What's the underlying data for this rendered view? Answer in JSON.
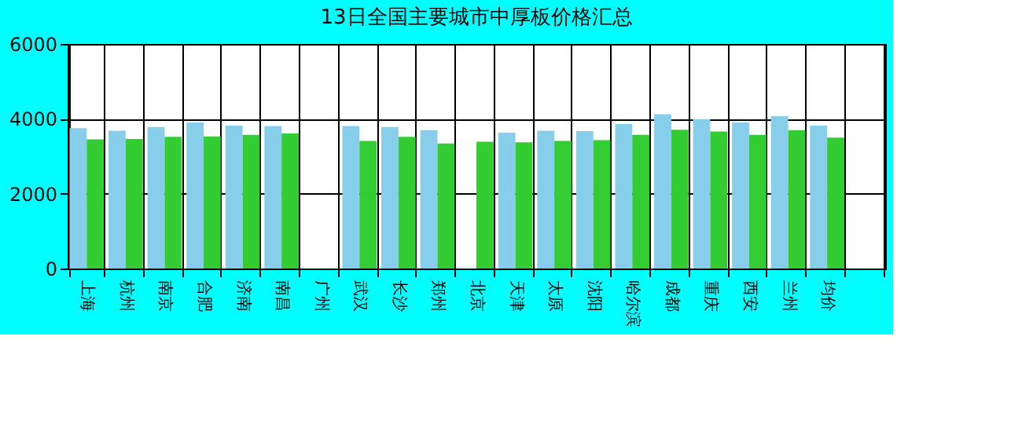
{
  "chart_data": {
    "type": "bar",
    "title": "13日全国主要城市中厚板价格汇总",
    "categories": [
      "上海",
      "杭州",
      "南京",
      "合肥",
      "济南",
      "南昌",
      "广州",
      "武汉",
      "长沙",
      "郑州",
      "北京",
      "天津",
      "太原",
      "沈阳",
      "哈尔滨",
      "成都",
      "重庆",
      "西安",
      "兰州",
      "均价",
      null
    ],
    "series": [
      {
        "color": "#87ceeb",
        "values": [
          3750,
          3680,
          3780,
          3900,
          3820,
          3810,
          null,
          3810,
          3780,
          3700,
          null,
          3630,
          3680,
          3670,
          3860,
          4120,
          3990,
          3900,
          4070,
          3820,
          null
        ]
      },
      {
        "color": "#33cc33",
        "values": [
          3450,
          3460,
          3520,
          3530,
          3570,
          3610,
          null,
          3410,
          3520,
          3340,
          3390,
          3370,
          3410,
          3430,
          3570,
          3710,
          3660,
          3570,
          3700,
          3500,
          null
        ]
      }
    ],
    "ylim": [
      0,
      6000
    ],
    "yticks": [
      0,
      2000,
      4000,
      6000
    ],
    "grid": true,
    "legend": false
  }
}
